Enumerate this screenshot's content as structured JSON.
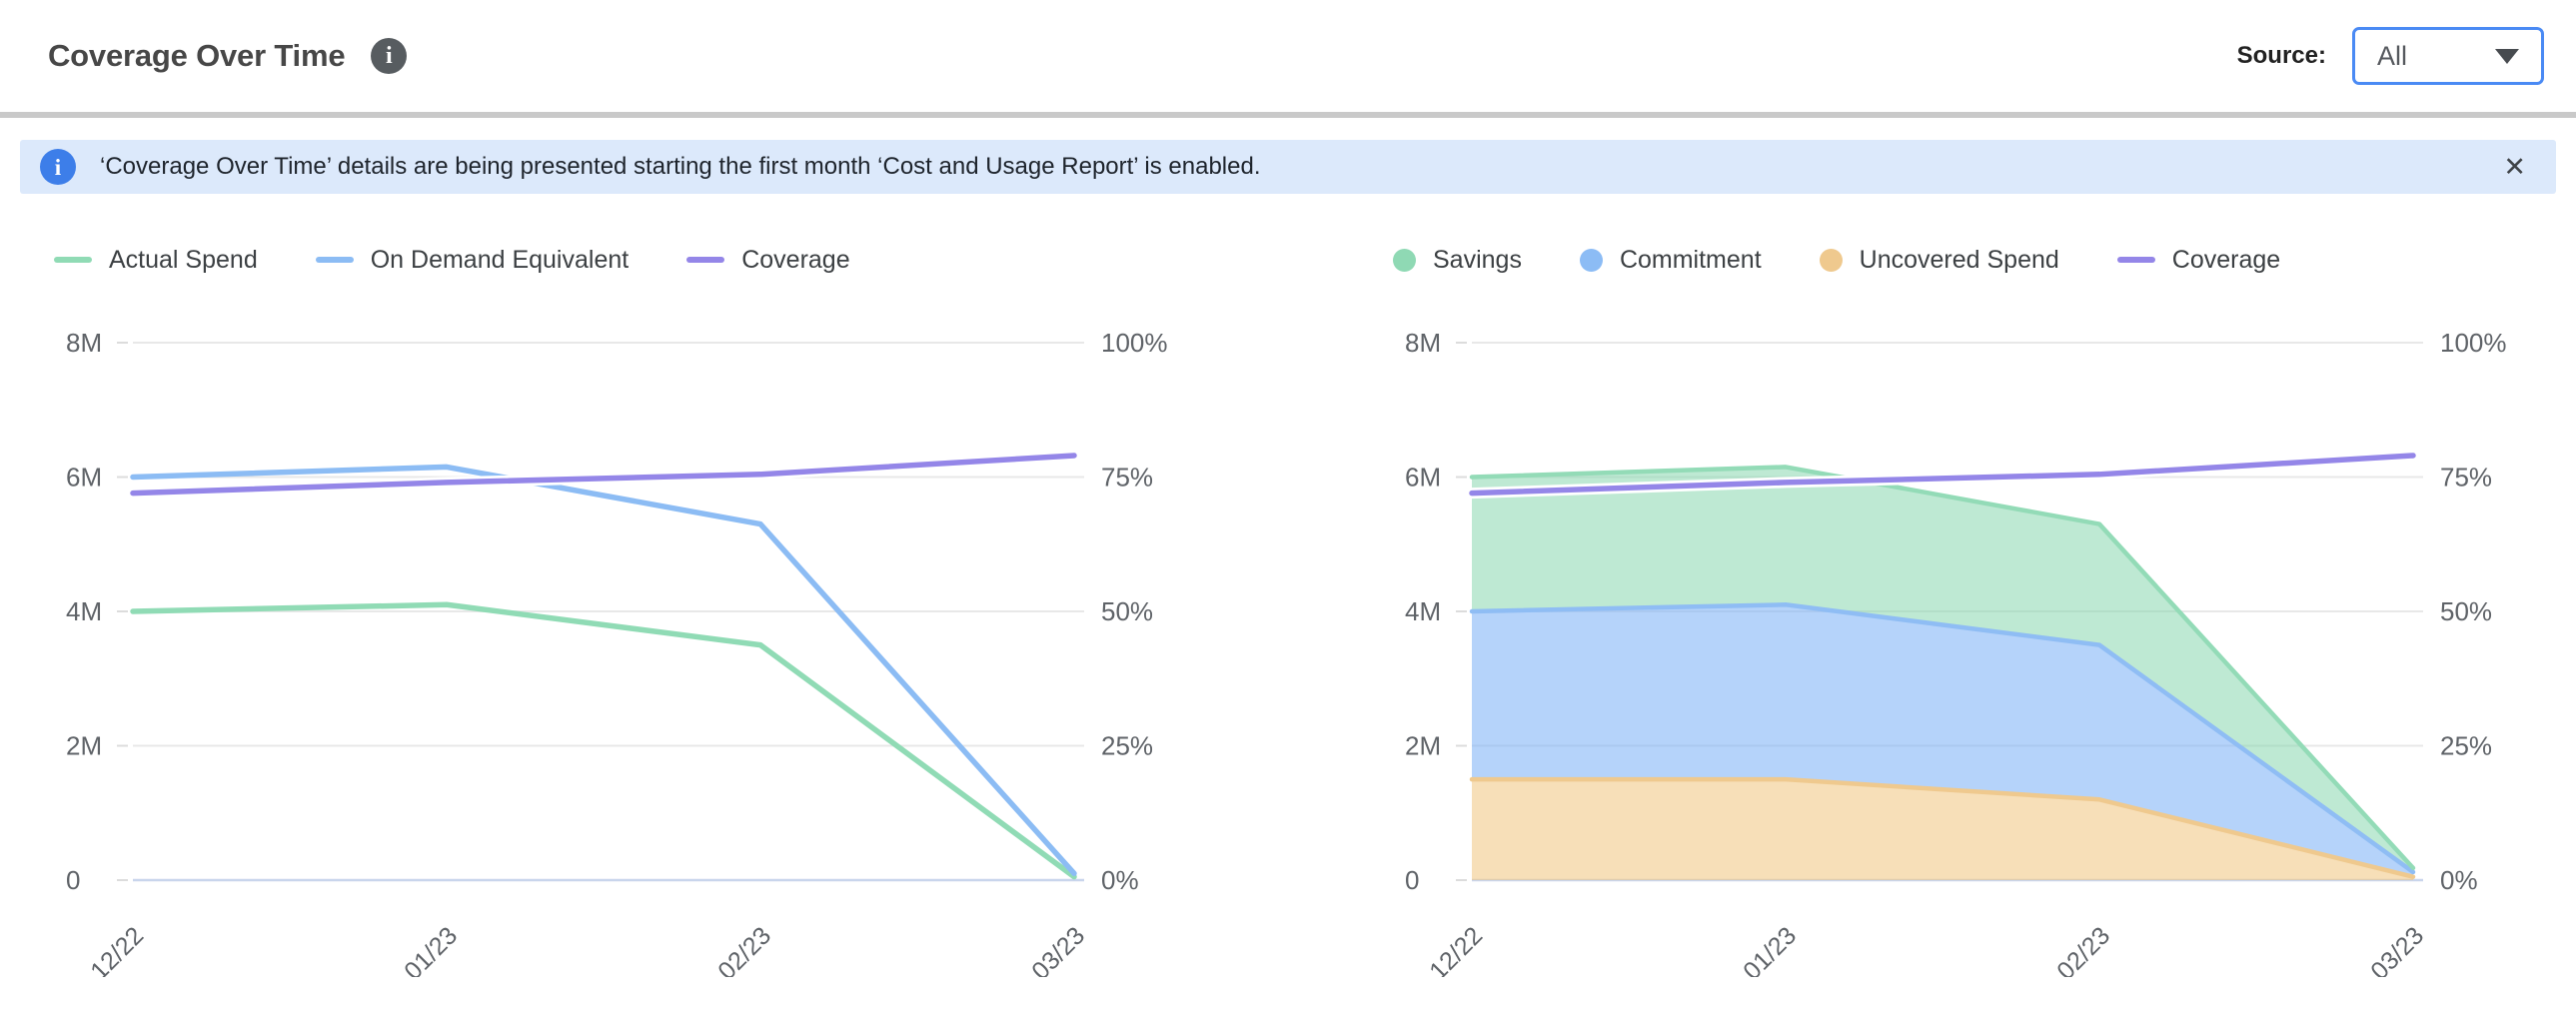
{
  "header": {
    "title": "Coverage Over Time",
    "source_label": "Source:",
    "source_value": "All"
  },
  "icons": {
    "info": "i",
    "close": "✕"
  },
  "banner": {
    "text": "‘Coverage Over Time’ details are being presented starting the first month ‘Cost and Usage Report’ is enabled."
  },
  "styles": {
    "accent_blue": "#4a8af4",
    "banner_bg": "#dce9fb",
    "banner_icon_bg": "#3d7ee9",
    "grid_color": "#e8e8e8",
    "axis_line_color": "#c9d5ec",
    "axis_text_color": "#5f6368",
    "green": "#90dbb5",
    "blue": "#8cbcf4",
    "purple": "#9486e8",
    "orange": "#efc98e"
  },
  "chart_data": [
    {
      "type": "line",
      "title": "Coverage Over Time - spend lines",
      "x": [
        "12/22",
        "01/23",
        "02/23",
        "03/23"
      ],
      "series": [
        {
          "name": "Actual Spend",
          "type": "line",
          "axis": "left",
          "unit": "M",
          "color": "#90dbb5",
          "values": [
            4.0,
            4.1,
            3.5,
            0.05
          ]
        },
        {
          "name": "On Demand Equivalent",
          "type": "line",
          "axis": "left",
          "unit": "M",
          "color": "#8cbcf4",
          "values": [
            6.0,
            6.15,
            5.3,
            0.1
          ]
        },
        {
          "name": "Coverage",
          "type": "line",
          "axis": "right",
          "unit": "%",
          "color": "#9486e8",
          "halo": true,
          "values": [
            72,
            74,
            75.5,
            79
          ]
        }
      ],
      "left_axis": {
        "labels": [
          "0",
          "2M",
          "4M",
          "6M",
          "8M"
        ],
        "values": [
          0,
          2,
          4,
          6,
          8
        ],
        "max": 8
      },
      "right_axis": {
        "labels": [
          "0%",
          "25%",
          "50%",
          "75%",
          "100%"
        ],
        "values": [
          0,
          25,
          50,
          75,
          100
        ],
        "max": 100
      },
      "grid": "horizontal",
      "legend_position": "top-left",
      "legend": [
        {
          "label": "Actual Spend",
          "swatch": "line",
          "color": "#90dbb5"
        },
        {
          "label": "On Demand Equivalent",
          "swatch": "line",
          "color": "#8cbcf4"
        },
        {
          "label": "Coverage",
          "swatch": "line",
          "color": "#9486e8"
        }
      ]
    },
    {
      "type": "area",
      "stacked": true,
      "title": "Coverage Over Time - stacked savings breakdown",
      "x": [
        "12/22",
        "01/23",
        "02/23",
        "03/23"
      ],
      "series": [
        {
          "name": "Uncovered Spend",
          "type": "area",
          "axis": "left",
          "unit": "M",
          "stroke": "#efc98e",
          "fill": "rgba(240,196,125,0.55)",
          "values": [
            1.5,
            1.5,
            1.2,
            0.05
          ]
        },
        {
          "name": "Commitment",
          "type": "area",
          "axis": "left",
          "unit": "M",
          "stroke": "#8fbdf4",
          "fill": "rgba(120,175,245,0.55)",
          "values": [
            2.5,
            2.6,
            2.3,
            0.07
          ]
        },
        {
          "name": "Savings",
          "type": "area",
          "axis": "left",
          "unit": "M",
          "stroke": "#93dbb7",
          "fill": "rgba(126,211,168,0.5)",
          "values": [
            2.0,
            2.05,
            1.8,
            0.06
          ]
        },
        {
          "name": "Coverage",
          "type": "line",
          "axis": "right",
          "unit": "%",
          "color": "#9486e8",
          "halo": true,
          "values": [
            72,
            74,
            75.5,
            79
          ]
        }
      ],
      "left_axis": {
        "labels": [
          "0",
          "2M",
          "4M",
          "6M",
          "8M"
        ],
        "values": [
          0,
          2,
          4,
          6,
          8
        ],
        "max": 8
      },
      "right_axis": {
        "labels": [
          "0%",
          "25%",
          "50%",
          "75%",
          "100%"
        ],
        "values": [
          0,
          25,
          50,
          75,
          100
        ],
        "max": 100
      },
      "grid": "horizontal",
      "legend_position": "top-left",
      "legend": [
        {
          "label": "Savings",
          "swatch": "circle",
          "color": "#8fd9b4"
        },
        {
          "label": "Commitment",
          "swatch": "circle",
          "color": "#8cbcf5"
        },
        {
          "label": "Uncovered Spend",
          "swatch": "circle",
          "color": "#efc98e"
        },
        {
          "label": "Coverage",
          "swatch": "line",
          "color": "#9486e8"
        }
      ]
    }
  ]
}
